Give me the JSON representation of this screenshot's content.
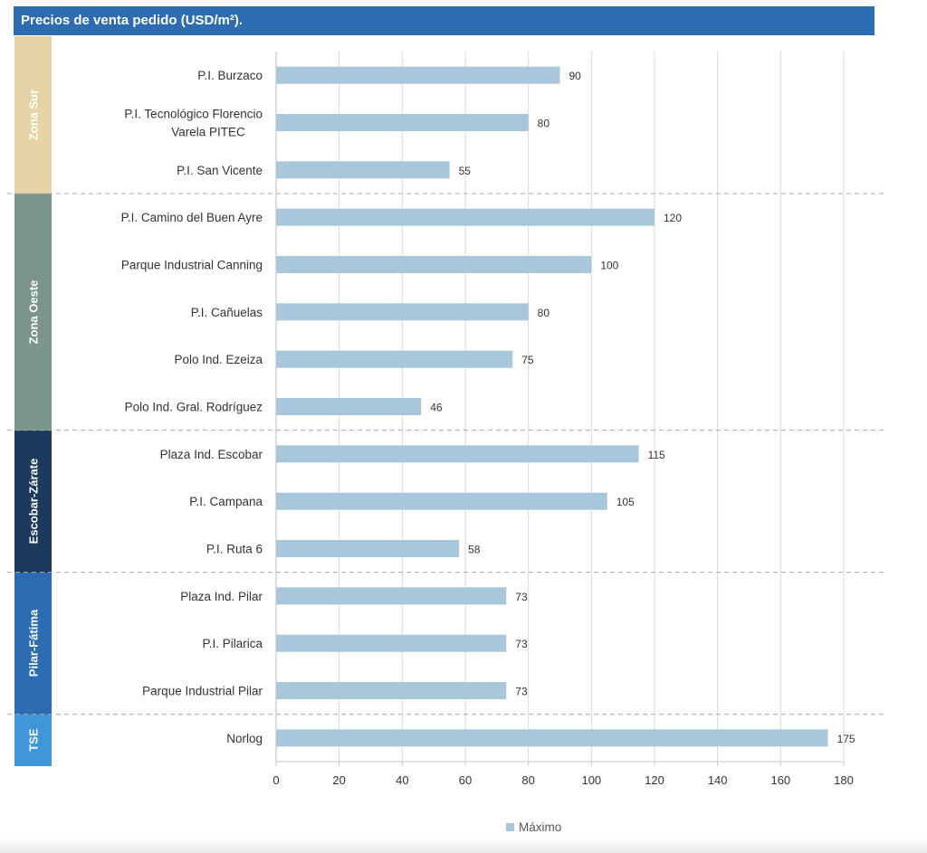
{
  "title": "Precios de venta pedido (USD/m²).",
  "zones": [
    {
      "name": "Zona Sur",
      "color": "#e6d4a6",
      "rows": 3
    },
    {
      "name": "Zona Oeste",
      "color": "#7b958a",
      "rows": 5
    },
    {
      "name": "Escobar-Zárate",
      "color": "#1b3a5c",
      "rows": 3
    },
    {
      "name": "Pilar-Fátima",
      "color": "#2b6cb3",
      "rows": 3
    },
    {
      "name": "TSE",
      "color": "#3f96d8",
      "rows": 1
    }
  ],
  "chart_data": {
    "type": "bar",
    "orientation": "horizontal",
    "title": "Precios de venta pedido (USD/m²).",
    "categories": [
      "P.I. Burzaco",
      "P.I. Tecnológico Florencio Varela PITEC",
      "P.I. San Vicente",
      "P.I. Camino del Buen Ayre",
      "Parque Industrial Canning",
      "P.I. Cañuelas",
      "Polo Ind. Ezeiza",
      "Polo Ind. Gral. Rodríguez",
      "Plaza Ind. Escobar",
      "P.I. Campana",
      "P.I. Ruta 6",
      "Plaza Ind. Pilar",
      "P.I. Pilarica",
      "Parque Industrial Pilar",
      "Norlog"
    ],
    "series": [
      {
        "name": "Máximo",
        "color": "#a9c7da",
        "values": [
          90,
          80,
          55,
          120,
          100,
          80,
          75,
          46,
          115,
          105,
          58,
          73,
          73,
          73,
          175
        ]
      }
    ],
    "xlim": [
      0,
      180
    ],
    "xticks": [
      "0",
      "20",
      "40",
      "60",
      "80",
      "100",
      "120",
      "140",
      "160",
      "180"
    ],
    "grid": "vertical",
    "legend": "bottom"
  }
}
